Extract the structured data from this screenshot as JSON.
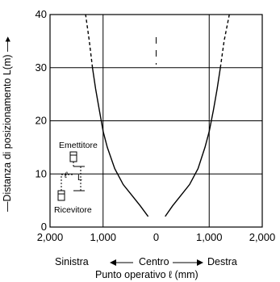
{
  "chart_data": {
    "type": "line",
    "xlabel": "Punto operativo ℓ (mm)",
    "ylabel": "—Distanza di posizionamento L(m) —▸",
    "xlim": [
      -2000,
      2000
    ],
    "ylim": [
      0,
      40
    ],
    "x_ticks": [
      -2000,
      -1000,
      0,
      1000,
      2000
    ],
    "x_tick_labels": [
      "2,000",
      "1,000",
      "0",
      "1,000",
      "2,000"
    ],
    "y_ticks": [
      0,
      10,
      20,
      30,
      40
    ],
    "y_tick_labels": [
      "0",
      "10",
      "20",
      "30",
      "40"
    ],
    "grid": true,
    "direction_labels": {
      "left": "Sinistra",
      "center": "Centro",
      "right": "Destra"
    },
    "series": [
      {
        "side": "left",
        "points": [
          [
            -150,
            2
          ],
          [
            -300,
            4
          ],
          [
            -460,
            6
          ],
          [
            -620,
            8
          ],
          [
            -780,
            11
          ],
          [
            -920,
            15
          ],
          [
            -1000,
            18
          ],
          [
            -1070,
            22
          ],
          [
            -1140,
            26
          ],
          [
            -1200,
            30
          ]
        ],
        "dashed_points": [
          [
            -1200,
            30
          ],
          [
            -1260,
            35
          ],
          [
            -1330,
            40
          ]
        ]
      },
      {
        "side": "right",
        "points": [
          [
            170,
            2
          ],
          [
            310,
            4
          ],
          [
            470,
            6
          ],
          [
            630,
            8
          ],
          [
            790,
            11
          ],
          [
            920,
            15
          ],
          [
            1000,
            18
          ],
          [
            1080,
            22
          ],
          [
            1150,
            26
          ],
          [
            1210,
            30
          ]
        ],
        "dashed_points": [
          [
            1210,
            30
          ],
          [
            1280,
            35
          ],
          [
            1380,
            40
          ]
        ]
      }
    ],
    "inset": {
      "emitter_label": "Emettitore",
      "receiver_label": "Ricevitore",
      "l_symbol": "ℓ",
      "L_symbol": "L"
    }
  }
}
